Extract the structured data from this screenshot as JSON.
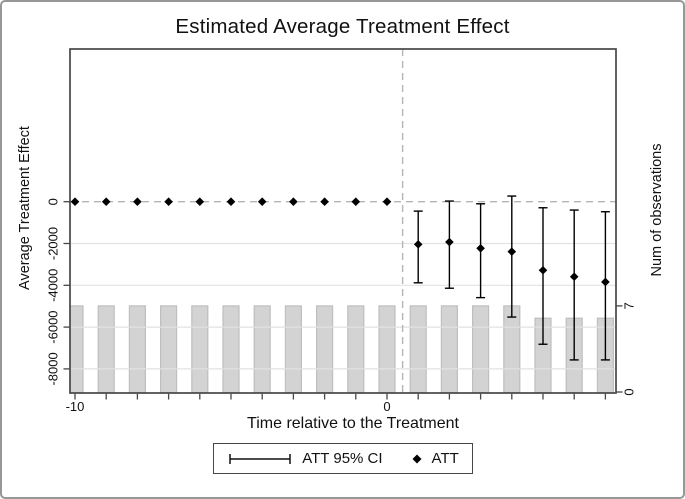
{
  "title": "Estimated Average Treatment Effect",
  "axes": {
    "left": {
      "title": "Average Treatment Effect",
      "tick_values": [
        0,
        -2000,
        -4000,
        -6000,
        -8000
      ],
      "tick_labels": [
        "0",
        "-2000",
        "-4000",
        "-6000",
        "-8000"
      ]
    },
    "right": {
      "title": "Num of observations",
      "tick_values": [
        7,
        0
      ],
      "tick_labels": [
        "7",
        "0"
      ]
    },
    "bottom": {
      "title": "Time relative to the Treatment",
      "labeled_ticks": [
        {
          "value": -10,
          "label": "-10"
        },
        {
          "value": 0,
          "label": "0"
        }
      ]
    }
  },
  "legend": {
    "ci_label": "ATT 95% CI",
    "att_label": "ATT"
  },
  "colors": {
    "bar_fill": "#d3d3d3",
    "bar_stroke": "#bfbfbf",
    "grid": "#e2e2e2",
    "dashed_ref": "#b5b5b5",
    "axis": "#474747",
    "marker": "#000000"
  },
  "chart_data": {
    "type": "scatter",
    "title": "Estimated Average Treatment Effect",
    "xlabel": "Time relative to the Treatment",
    "ylabel": "Average Treatment Effect",
    "ylabel_right": "Num of observations",
    "x": [
      -10,
      -9,
      -8,
      -7,
      -6,
      -5,
      -4,
      -3,
      -2,
      -1,
      0,
      1,
      2,
      3,
      4,
      5,
      6,
      7
    ],
    "series": [
      {
        "name": "ATT",
        "type": "scatter",
        "marker": "diamond",
        "axis": "left",
        "values": [
          0,
          0,
          0,
          0,
          0,
          0,
          0,
          0,
          0,
          0,
          0,
          -2040,
          -1930,
          -2230,
          -2390,
          -3280,
          -3590,
          -3840
        ]
      },
      {
        "name": "ATT 95% CI",
        "type": "errorbar",
        "axis": "left",
        "low": [
          0,
          0,
          0,
          0,
          0,
          0,
          0,
          0,
          0,
          0,
          0,
          -3880,
          -4140,
          -4590,
          -5520,
          -6820,
          -7570,
          -7570
        ],
        "high": [
          0,
          0,
          0,
          0,
          0,
          0,
          0,
          0,
          0,
          0,
          0,
          -450,
          30,
          -100,
          270,
          -290,
          -400,
          -480
        ]
      },
      {
        "name": "Num of observations",
        "type": "bar",
        "axis": "right",
        "values": [
          7,
          7,
          7,
          7,
          7,
          7,
          7,
          7,
          7,
          7,
          7,
          7,
          7,
          7,
          7,
          6,
          6,
          6
        ]
      }
    ],
    "left_axis": {
      "ticks": [
        0,
        -2000,
        -4000,
        -6000,
        -8000
      ],
      "range": [
        -9200,
        7400
      ]
    },
    "right_axis": {
      "ticks": [
        7,
        0
      ],
      "range": [
        0,
        28
      ]
    },
    "x_axis": {
      "tick_step": 1,
      "labeled_ticks": [
        -10,
        0
      ],
      "range": [
        -10.3,
        7.4
      ]
    },
    "reference_lines": [
      {
        "orientation": "horizontal",
        "value": 0,
        "style": "dashed"
      },
      {
        "orientation": "vertical",
        "value": 0.5,
        "style": "dashed"
      }
    ],
    "grid": "horizontal-light",
    "legend_position": "bottom"
  }
}
